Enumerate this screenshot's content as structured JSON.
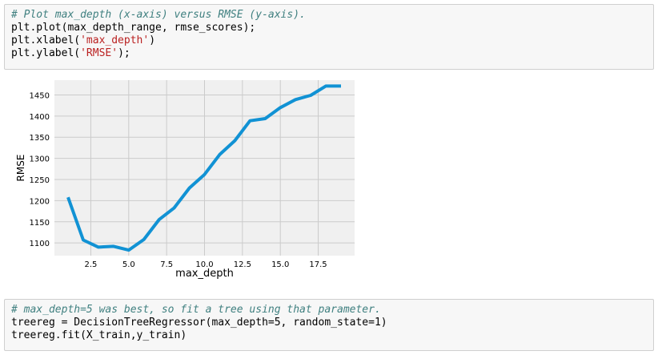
{
  "cell1": {
    "lines": [
      {
        "parts": [
          {
            "t": "# Plot max_depth (x-axis) versus RMSE (y-axis).",
            "c": "comment"
          }
        ]
      },
      {
        "parts": [
          {
            "t": "plt.plot(max_depth_range, rmse_scores);",
            "c": ""
          }
        ]
      },
      {
        "parts": [
          {
            "t": "plt.xlabel(",
            "c": ""
          },
          {
            "t": "'max_depth'",
            "c": "str"
          },
          {
            "t": ")",
            "c": ""
          }
        ]
      },
      {
        "parts": [
          {
            "t": "plt.ylabel(",
            "c": ""
          },
          {
            "t": "'RMSE'",
            "c": "str"
          },
          {
            "t": ");",
            "c": ""
          }
        ]
      }
    ]
  },
  "cell2": {
    "lines": [
      {
        "parts": [
          {
            "t": "# max_depth=5 was best, so fit a tree using that parameter.",
            "c": "comment"
          }
        ]
      },
      {
        "parts": [
          {
            "t": "treereg = DecisionTreeRegressor(max_depth=5, random_state=1)",
            "c": ""
          }
        ]
      },
      {
        "parts": [
          {
            "t": "treereg.fit(X_train,y_train)",
            "c": ""
          }
        ]
      }
    ]
  },
  "chart_data": {
    "type": "line",
    "title": "",
    "xlabel": "max_depth",
    "ylabel": "RMSE",
    "xlim": [
      0.1,
      19.9
    ],
    "ylim": [
      1070,
      1485
    ],
    "xticks": [
      2.5,
      5.0,
      7.5,
      10.0,
      12.5,
      15.0,
      17.5
    ],
    "xtick_labels": [
      "2.5",
      "5.0",
      "7.5",
      "10.0",
      "12.5",
      "15.0",
      "17.5"
    ],
    "yticks": [
      1100,
      1150,
      1200,
      1250,
      1300,
      1350,
      1400,
      1450
    ],
    "ytick_labels": [
      "1100",
      "1150",
      "1200",
      "1250",
      "1300",
      "1350",
      "1400",
      "1450"
    ],
    "grid": true,
    "line_color": "#1192d4",
    "background_color": "#f0f0f0",
    "series": [
      {
        "x": [
          1,
          2,
          3,
          4,
          5,
          6,
          7,
          8,
          9,
          10,
          11,
          12,
          13,
          14,
          15,
          16,
          17,
          18,
          19
        ],
        "values": [
          1208,
          1107,
          1090,
          1092,
          1083,
          1108,
          1155,
          1183,
          1230,
          1262,
          1309,
          1342,
          1389,
          1394,
          1420,
          1439,
          1449,
          1471,
          1471
        ]
      }
    ]
  }
}
